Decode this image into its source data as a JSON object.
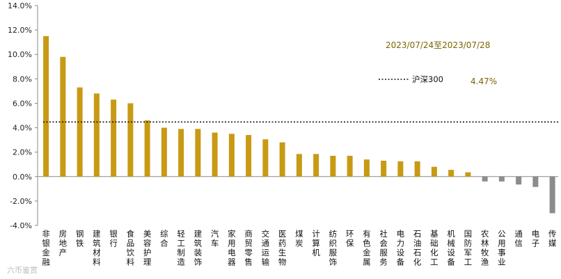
{
  "chart_data": {
    "type": "bar",
    "date_range": "2023/07/24至2023/07/28",
    "ylim": [
      -4,
      14
    ],
    "yticks": [
      -4,
      -2,
      0,
      2,
      4,
      6,
      8,
      10,
      12,
      14
    ],
    "ytick_labels": [
      "-4.0%",
      "-2.0%",
      "0.0%",
      "2.0%",
      "4.0%",
      "6.0%",
      "8.0%",
      "10.0%",
      "12.0%",
      "14.0%"
    ],
    "grid": false,
    "categories": [
      "非银金融",
      "房地产",
      "钢铁",
      "建筑材料",
      "银行",
      "食品饮料",
      "美容护理",
      "综合",
      "轻工制造",
      "建筑装饰",
      "汽车",
      "家用电器",
      "商贸零售",
      "交通运输",
      "医药生物",
      "煤炭",
      "计算机",
      "纺织服饰",
      "环保",
      "有色金属",
      "社会服务",
      "电力设备",
      "石油石化",
      "基础化工",
      "机械设备",
      "国防军工",
      "农林牧渔",
      "公用事业",
      "通信",
      "电子",
      "传媒"
    ],
    "values": [
      11.5,
      9.8,
      7.3,
      6.8,
      6.3,
      6.0,
      4.6,
      4.0,
      3.9,
      3.9,
      3.6,
      3.5,
      3.4,
      3.05,
      2.8,
      1.85,
      1.85,
      1.7,
      1.7,
      1.4,
      1.3,
      1.25,
      1.25,
      0.8,
      0.55,
      0.35,
      -0.4,
      -0.4,
      -0.65,
      -0.85,
      -3.0
    ],
    "reference_line": {
      "name": "沪深300",
      "value": 4.47,
      "label": "4.47%"
    },
    "colors": {
      "positive": "#c89a14",
      "negative": "#8c8c8c",
      "axis": "#888888",
      "reference": "#111111"
    }
  },
  "watermark": "六币鉴赏"
}
